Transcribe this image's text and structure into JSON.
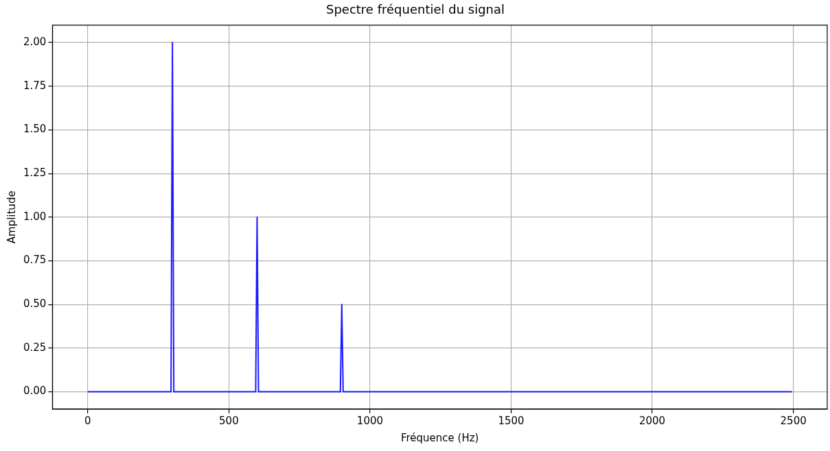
{
  "chart_data": {
    "type": "line",
    "title": "Spectre fréquentiel du signal",
    "xlabel": "Fréquence (Hz)",
    "ylabel": "Amplitude",
    "series": [
      {
        "color": "#1a1aff",
        "x": [
          0,
          295,
          300,
          305,
          595,
          600,
          605,
          895,
          900,
          905,
          2495
        ],
        "values": [
          0,
          0,
          2,
          0,
          0,
          1,
          0,
          0,
          0.5,
          0,
          0
        ]
      }
    ],
    "xlim": [
      -125,
      2620
    ],
    "xticks": [
      0,
      500,
      1000,
      1500,
      2000,
      2500
    ],
    "ylim": [
      -0.1,
      2.1
    ],
    "yticks": [
      {
        "value": 0,
        "label": "0.00"
      },
      {
        "value": 0.25,
        "label": "0.25"
      },
      {
        "value": 0.5,
        "label": "0.50"
      },
      {
        "value": 0.75,
        "label": "0.75"
      },
      {
        "value": 1,
        "label": "1.00"
      },
      {
        "value": 1.25,
        "label": "1.25"
      },
      {
        "value": 1.5,
        "label": "1.50"
      },
      {
        "value": 1.75,
        "label": "1.75"
      },
      {
        "value": 2,
        "label": "2.00"
      }
    ],
    "grid": true,
    "legend": false,
    "marker": "none",
    "line_style": "solid"
  }
}
